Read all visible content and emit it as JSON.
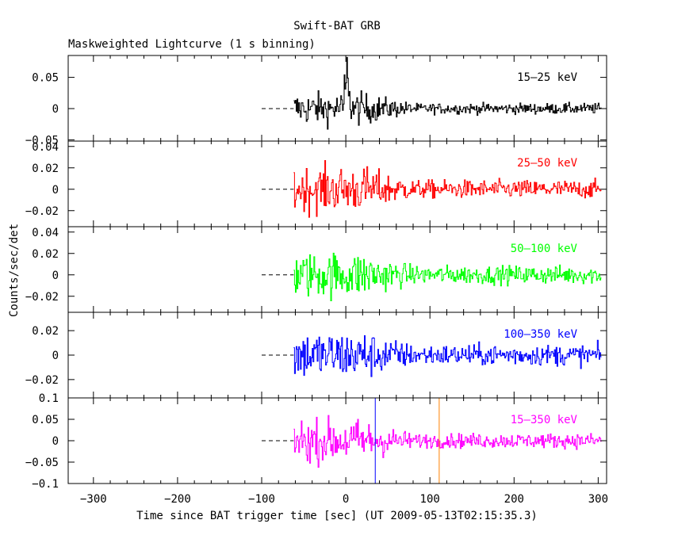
{
  "title": "Swift-BAT GRB",
  "subtitle": "Maskweighted Lightcurve (1 s binning)",
  "chart_data": {
    "type": "line",
    "xlabel": "Time since BAT trigger time [sec] (UT 2009-05-13T02:15:35.3)",
    "ylabel": "Counts/sec/det",
    "xlim": [
      -330,
      310
    ],
    "x_ticks": [
      -300,
      -200,
      -100,
      0,
      100,
      200,
      300
    ],
    "x_tick_labels": [
      "−300",
      "−200",
      "−100",
      "0",
      "100",
      "200",
      "300"
    ],
    "data_start": -62,
    "data_end": 303,
    "baseline_dashed_from": -100,
    "panels": [
      {
        "band": "15–25 keV",
        "color": "#000000",
        "ylim": [
          -0.052,
          0.085
        ],
        "yticks": [
          -0.05,
          0,
          0.05
        ],
        "ytick_labels": [
          "−0.05",
          "0",
          "0.05"
        ],
        "noise_early": 0.018,
        "noise_late": 0.006,
        "peak": {
          "x": 1,
          "value": 0.082
        }
      },
      {
        "band": "25–50 keV",
        "color": "#ff0000",
        "ylim": [
          -0.035,
          0.045
        ],
        "yticks": [
          -0.02,
          0,
          0.02,
          0.04
        ],
        "ytick_labels": [
          "−0.02",
          "0",
          "0.02",
          "0.04"
        ],
        "noise_early": 0.015,
        "noise_late": 0.006,
        "peak": null
      },
      {
        "band": "50–100 keV",
        "color": "#00ff00",
        "ylim": [
          -0.035,
          0.045
        ],
        "yticks": [
          -0.02,
          0,
          0.02,
          0.04
        ],
        "ytick_labels": [
          "−0.02",
          "0",
          "0.02",
          "0.04"
        ],
        "noise_early": 0.015,
        "noise_late": 0.006,
        "peak": null
      },
      {
        "band": "100–350 keV",
        "color": "#0000ff",
        "ylim": [
          -0.035,
          0.035
        ],
        "yticks": [
          -0.02,
          0,
          0.02
        ],
        "ytick_labels": [
          "−0.02",
          "0",
          "0.02"
        ],
        "noise_early": 0.014,
        "noise_late": 0.006,
        "peak": null
      },
      {
        "band": "15–350 keV",
        "color": "#ff00ff",
        "ylim": [
          -0.1,
          0.1
        ],
        "yticks": [
          -0.1,
          -0.05,
          0,
          0.05,
          0.1
        ],
        "ytick_labels": [
          "−0.1",
          "−0.05",
          "0",
          "0.05",
          "0.1"
        ],
        "noise_early": 0.035,
        "noise_late": 0.012,
        "peak": null,
        "markers": [
          {
            "x": 35,
            "color": "#0000ff"
          },
          {
            "x": 111,
            "color": "#ff8000"
          }
        ]
      }
    ]
  }
}
